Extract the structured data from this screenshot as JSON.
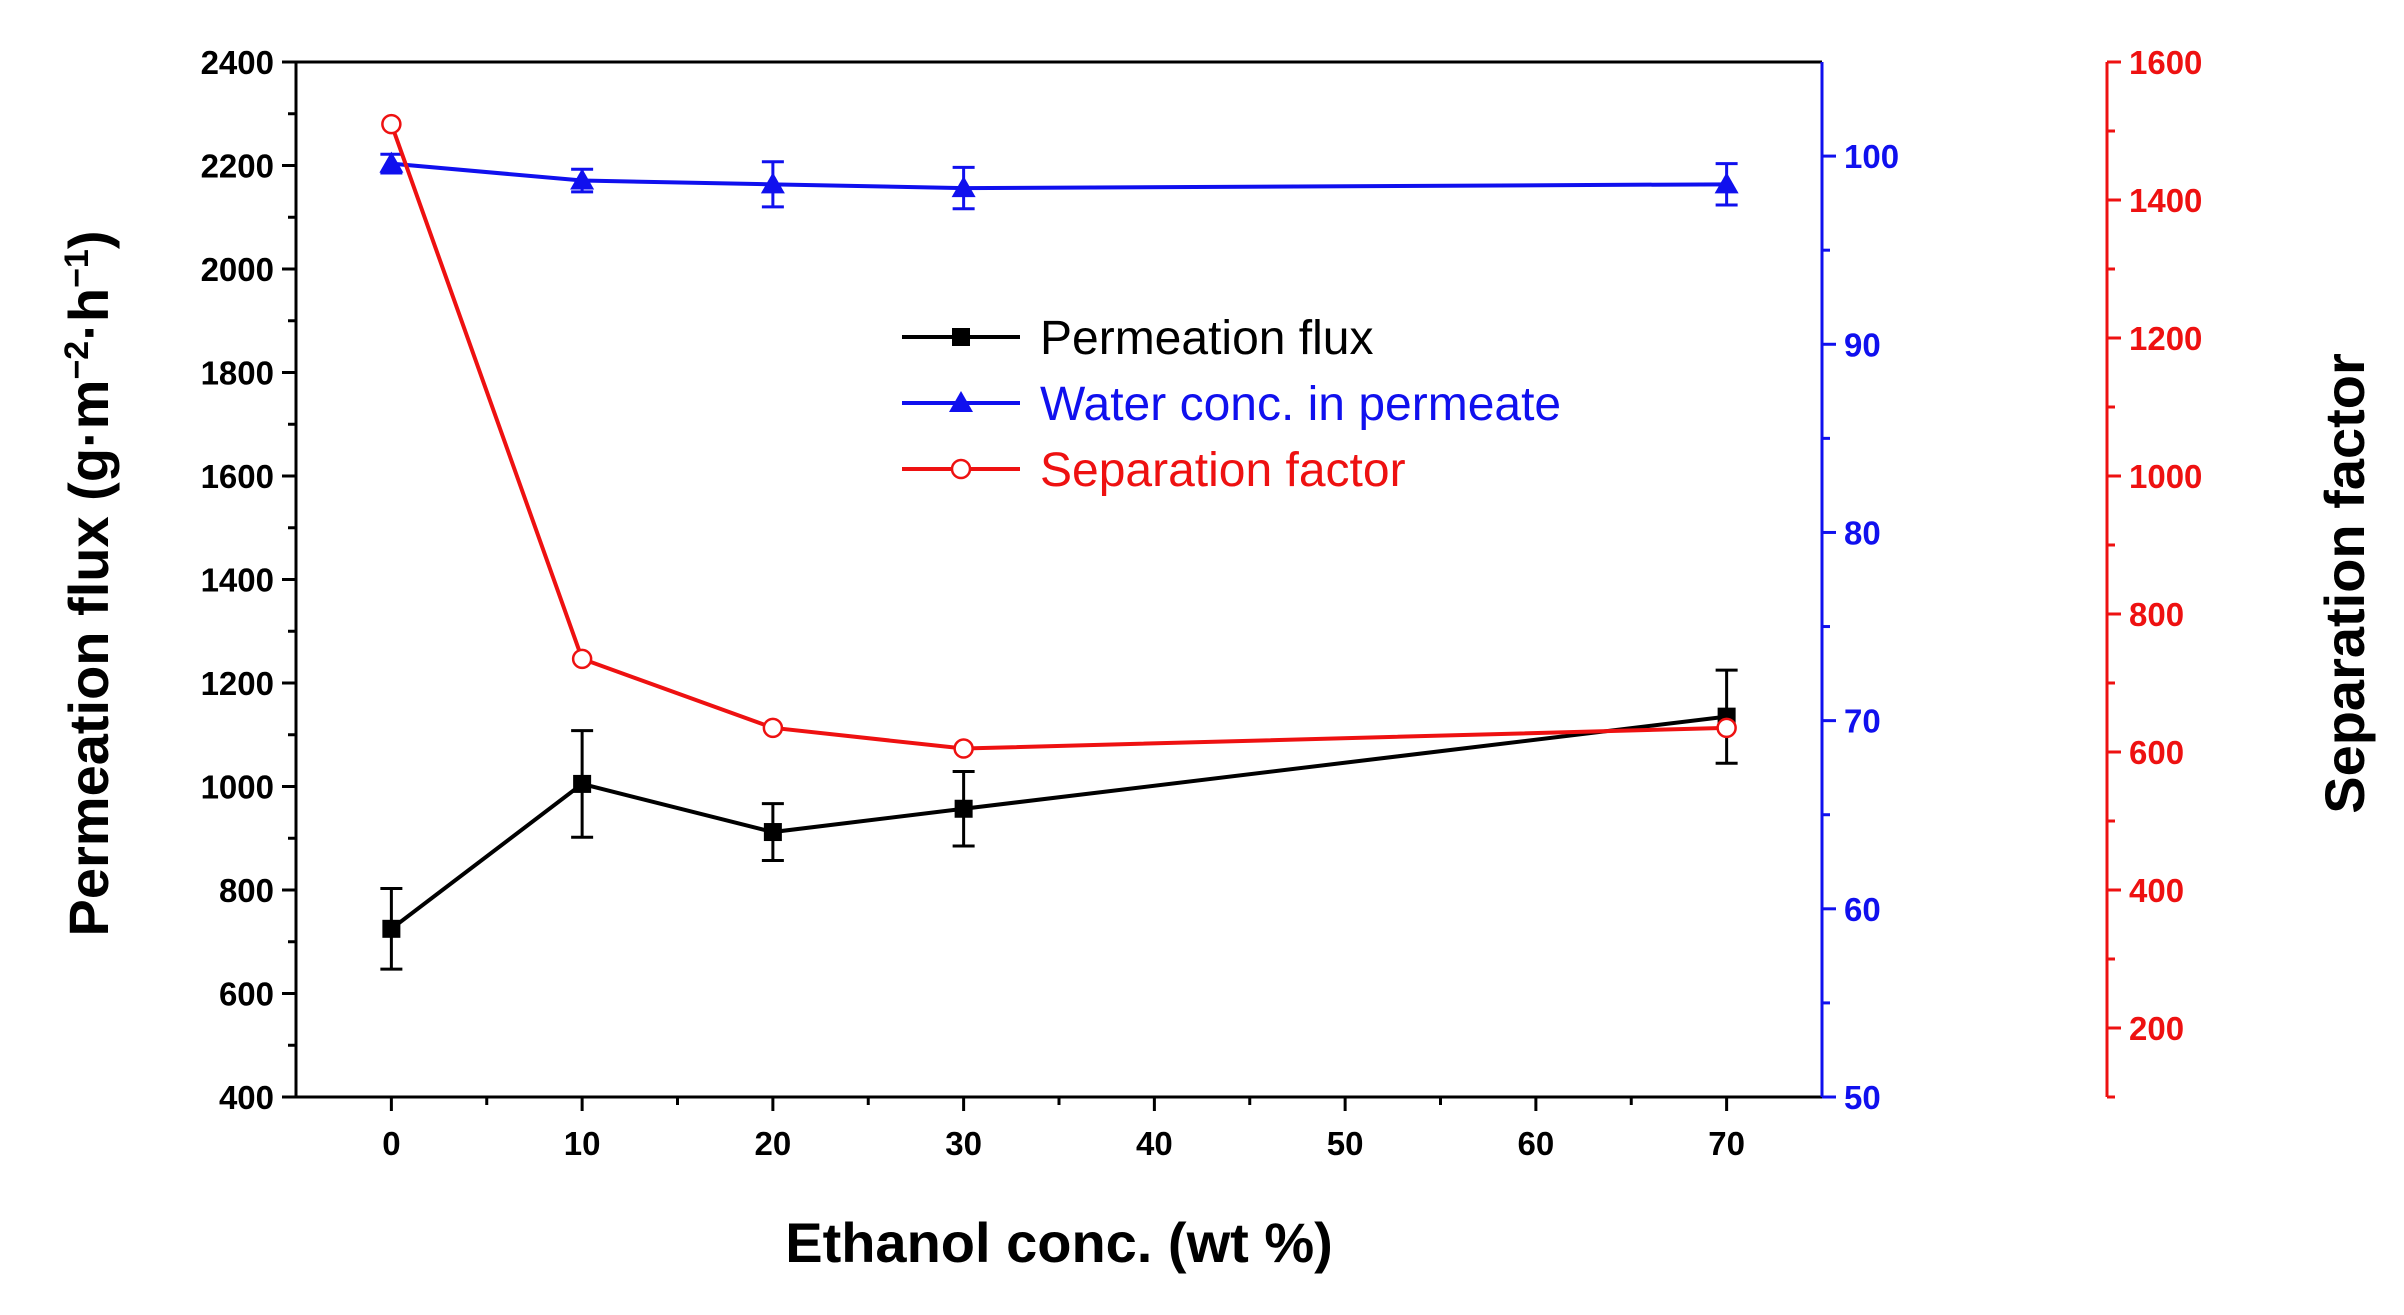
{
  "chart_data": {
    "type": "line",
    "x_axis": {
      "label": "Ethanol conc. (wt %)",
      "range": [
        -5,
        75
      ],
      "ticks": [
        0,
        10,
        20,
        30,
        40,
        50,
        60,
        70
      ],
      "tick_labels": [
        "0",
        "10",
        "20",
        "30",
        "40",
        "50",
        "60",
        "70"
      ]
    },
    "y_axis_left": {
      "label_main": "Permeation flux (g·m",
      "label_sup1": "−2",
      "label_mid": "·h",
      "label_sup2": "−1",
      "label_end": ")",
      "range": [
        400,
        2400
      ],
      "ticks": [
        400,
        600,
        800,
        1000,
        1200,
        1400,
        1600,
        1800,
        2000,
        2200,
        2400
      ],
      "tick_labels": [
        "400",
        "600",
        "800",
        "1000",
        "1200",
        "1400",
        "1600",
        "1800",
        "2000",
        "2200",
        "2400"
      ],
      "color": "#000000"
    },
    "y_axis_right1": {
      "label": "",
      "range": [
        50,
        105
      ],
      "ticks": [
        50,
        60,
        70,
        80,
        90,
        100
      ],
      "tick_labels": [
        "50",
        "60",
        "70",
        "80",
        "90",
        "100"
      ],
      "color": "#1010ee"
    },
    "y_axis_right2": {
      "label": "Separation factor",
      "range": [
        100,
        1600
      ],
      "ticks": [
        200,
        400,
        600,
        800,
        1000,
        1200,
        1400,
        1600
      ],
      "tick_labels": [
        "200",
        "400",
        "600",
        "800",
        "1000",
        "1200",
        "1400",
        "1600"
      ],
      "color": "#ee1111"
    },
    "series": [
      {
        "name": "Permeation flux",
        "axis": "left",
        "color": "#000000",
        "marker": "square",
        "x": [
          0,
          10,
          20,
          30,
          70
        ],
        "y": [
          725,
          1005,
          912,
          957,
          1135
        ],
        "err": [
          78,
          103,
          55,
          72,
          90
        ]
      },
      {
        "name": "Water conc. in permeate",
        "axis": "right1",
        "color": "#1010ee",
        "marker": "triangle",
        "x": [
          0,
          10,
          20,
          30,
          70
        ],
        "y": [
          99.6,
          98.7,
          98.5,
          98.3,
          98.5
        ],
        "err": [
          0.5,
          0.6,
          1.2,
          1.1,
          1.1
        ]
      },
      {
        "name": "Separation factor",
        "axis": "right2",
        "color": "#ee1111",
        "marker": "open-circle",
        "x": [
          0,
          10,
          20,
          30,
          70
        ],
        "y": [
          1510,
          735,
          635,
          605,
          635
        ],
        "err": []
      }
    ],
    "legend": {
      "position": "upper-center",
      "entries": [
        "Permeation flux",
        "Water conc. in permeate",
        "Separation factor"
      ]
    }
  }
}
